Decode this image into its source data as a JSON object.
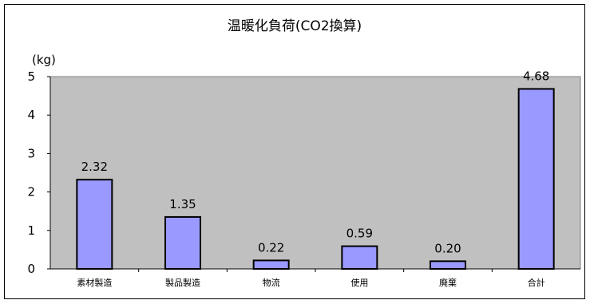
{
  "chart_data": {
    "type": "bar",
    "title": "温暖化負荷(CO2換算)",
    "ylabel": "(kg)",
    "xlabel": "",
    "categories": [
      "素材製造",
      "製品製造",
      "物流",
      "使用",
      "廃棄",
      "合計"
    ],
    "values": [
      2.32,
      1.35,
      0.22,
      0.59,
      0.2,
      4.68
    ],
    "value_labels": [
      "2.32",
      "1.35",
      "0.22",
      "0.59",
      "0.20",
      "4.68"
    ],
    "ylim": [
      0,
      5
    ],
    "yticks": [
      "0",
      "1",
      "2",
      "3",
      "4",
      "5"
    ],
    "grid": false,
    "legend": "none",
    "colors": {
      "plot_background": "#c0c0c0",
      "bar_fill": "#9999ff",
      "bar_stroke": "#000000"
    }
  }
}
